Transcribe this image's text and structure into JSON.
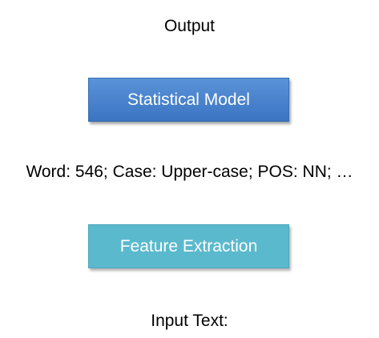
{
  "diagram": {
    "output_label": "Output",
    "model_box": {
      "label": "Statistical Model",
      "color": "#4a84cc"
    },
    "features_label": "Word: 546; Case: Upper-case; POS: NN; …",
    "feature_box": {
      "label": "Feature Extraction",
      "color": "#5bb9cd"
    },
    "input_label": "Input Text:"
  }
}
